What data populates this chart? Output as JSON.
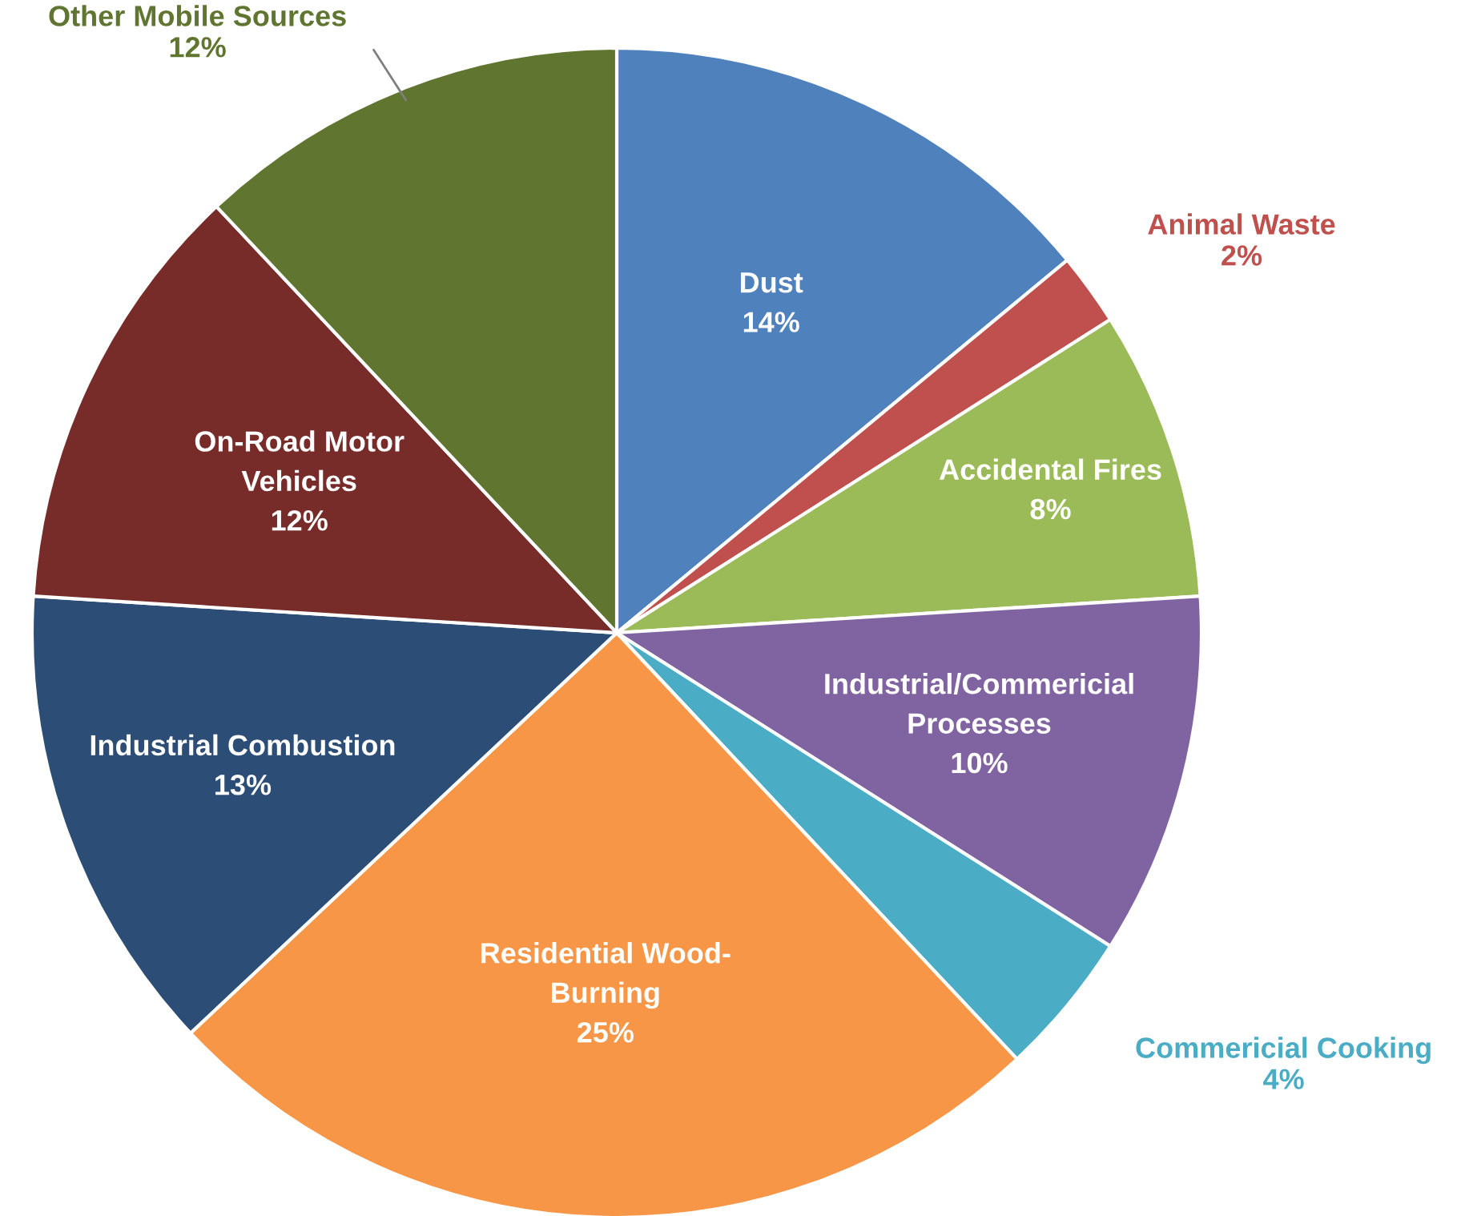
{
  "chart_data": {
    "type": "pie",
    "categories": [
      "Dust",
      "Animal Waste",
      "Accidental Fires",
      "Industrial/Commericial\nProcesses",
      "Commericial Cooking",
      "Residential Wood-\nBurning",
      "Industrial Combustion",
      "On-Road Motor\nVehicles",
      "Other Mobile Sources"
    ],
    "values": [
      14,
      2,
      8,
      10,
      4,
      25,
      13,
      12,
      12
    ],
    "value_labels": [
      "14%",
      "2%",
      "8%",
      "10%",
      "4%",
      "25%",
      "13%",
      "12%",
      "12%"
    ],
    "colors": [
      "#4f81bd",
      "#c0504d",
      "#9bbb59",
      "#8064a2",
      "#4bacc6",
      "#f79646",
      "#2c4d75",
      "#772c2a",
      "#5f7530"
    ],
    "legend": false
  }
}
